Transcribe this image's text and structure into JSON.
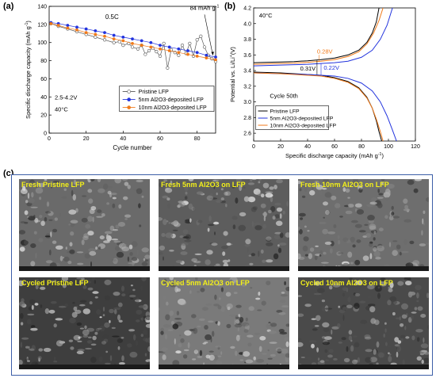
{
  "panels": {
    "a": "(a)",
    "b": "(b)",
    "c": "(c)"
  },
  "chart_data": [
    {
      "id": "a",
      "type": "scatter",
      "xlabel": "Cycle number",
      "ylabel": "Specific discharge capacity (mAh g",
      "ylabel_sup": "-1",
      "ylabel_tail": ")",
      "xlim": [
        0,
        90
      ],
      "ylim": [
        0,
        140
      ],
      "xticks": [
        0,
        20,
        40,
        60,
        80
      ],
      "yticks": [
        0,
        20,
        40,
        60,
        80,
        100,
        120,
        140
      ],
      "annotations": {
        "rate": "0.5C",
        "capacity": "84 mAh g",
        "capacity_sup": "-1",
        "voltage": "2.5-4.2V",
        "temperature": "40°C"
      },
      "series": [
        {
          "name": "Pristine LFP",
          "color": "#555555",
          "marker": "half-circle",
          "x": [
            1,
            5,
            10,
            15,
            20,
            25,
            30,
            35,
            38,
            40,
            43,
            45,
            48,
            50,
            52,
            54,
            56,
            58,
            60,
            62,
            64,
            66,
            68,
            70,
            72,
            74,
            76,
            78,
            80,
            82,
            84,
            86,
            88,
            90
          ],
          "y": [
            121,
            118,
            115,
            112,
            109,
            106,
            103,
            100,
            101,
            97,
            99,
            95,
            93,
            97,
            87,
            91,
            94,
            90,
            85,
            99,
            72,
            92,
            89,
            86,
            97,
            88,
            99,
            85,
            103,
            107,
            95,
            86,
            82,
            79
          ]
        },
        {
          "name": "5nm Al2O3-deposited LFP",
          "color": "#2233dd",
          "marker": "circle",
          "x": [
            1,
            5,
            10,
            15,
            20,
            25,
            30,
            35,
            40,
            45,
            50,
            55,
            60,
            65,
            70,
            75,
            80,
            85,
            90
          ],
          "y": [
            122,
            121,
            119,
            117,
            115,
            113,
            111,
            108,
            106,
            104,
            102,
            100,
            97,
            95,
            93,
            91,
            89,
            86,
            84
          ]
        },
        {
          "name": "10nm Al2O3-deposited LFP",
          "color": "#f07a1a",
          "marker": "circle",
          "x": [
            1,
            5,
            10,
            15,
            20,
            25,
            30,
            35,
            40,
            45,
            50,
            55,
            60,
            65,
            70,
            75,
            80,
            85,
            90
          ],
          "y": [
            121,
            119,
            116,
            114,
            111,
            109,
            107,
            104,
            102,
            99,
            97,
            95,
            93,
            91,
            89,
            87,
            85,
            83,
            81
          ]
        }
      ]
    },
    {
      "id": "b",
      "type": "line",
      "xlabel": "Specific discharge capacity (mAh g",
      "xlabel_sup": "-1",
      "xlabel_tail": ")",
      "ylabel": "Potential vs. Li/Li",
      "ylabel_sup": "+",
      "ylabel_tail": "(V)",
      "xlim": [
        0,
        120
      ],
      "ylim": [
        2.5,
        4.2
      ],
      "xticks": [
        0,
        20,
        40,
        60,
        80,
        100,
        120
      ],
      "yticks": [
        2.6,
        2.8,
        3.0,
        3.2,
        3.4,
        3.6,
        3.8,
        4.0,
        4.2
      ],
      "annotations": {
        "temperature": "40°C",
        "cycle": "Cycle 50th",
        "gap_pristine": "0.31V",
        "gap_5nm": "0.22V",
        "gap_10nm": "0.28V"
      },
      "series": [
        {
          "name": "Pristine LFP",
          "color": "#000000",
          "charge": {
            "x": [
              0,
              10,
              20,
              30,
              40,
              50,
              60,
              70,
              78,
              84,
              88,
              91,
              93
            ],
            "y": [
              3.5,
              3.505,
              3.51,
              3.515,
              3.525,
              3.54,
              3.56,
              3.6,
              3.66,
              3.76,
              3.88,
              4.02,
              4.2
            ]
          },
          "discharge": {
            "x": [
              0,
              10,
              20,
              30,
              40,
              50,
              60,
              70,
              78,
              84,
              88,
              91,
              93,
              95
            ],
            "y": [
              3.38,
              3.375,
              3.37,
              3.36,
              3.35,
              3.34,
              3.31,
              3.26,
              3.18,
              3.06,
              2.92,
              2.76,
              2.62,
              2.5
            ]
          }
        },
        {
          "name": "5nm Al2O3-deposited LFP",
          "color": "#2233dd",
          "charge": {
            "x": [
              0,
              10,
              20,
              30,
              40,
              50,
              60,
              70,
              80,
              88,
              94,
              99,
              103
            ],
            "y": [
              3.46,
              3.465,
              3.47,
              3.475,
              3.48,
              3.49,
              3.5,
              3.52,
              3.57,
              3.66,
              3.8,
              3.98,
              4.2
            ]
          },
          "discharge": {
            "x": [
              0,
              10,
              20,
              30,
              40,
              50,
              60,
              70,
              80,
              88,
              94,
              99,
              103,
              106
            ],
            "y": [
              3.37,
              3.365,
              3.36,
              3.355,
              3.35,
              3.34,
              3.33,
              3.3,
              3.24,
              3.14,
              3.0,
              2.82,
              2.64,
              2.5
            ]
          }
        },
        {
          "name": "10nm Al2O3-deposited LFP",
          "color": "#f07a1a",
          "charge": {
            "x": [
              0,
              10,
              20,
              30,
              40,
              50,
              60,
              70,
              78,
              84,
              89,
              93,
              96
            ],
            "y": [
              3.48,
              3.485,
              3.49,
              3.495,
              3.505,
              3.52,
              3.54,
              3.58,
              3.64,
              3.74,
              3.88,
              4.04,
              4.2
            ]
          },
          "discharge": {
            "x": [
              0,
              10,
              20,
              30,
              40,
              50,
              60,
              70,
              78,
              84,
              88,
              91,
              94,
              96
            ],
            "y": [
              3.37,
              3.365,
              3.36,
              3.35,
              3.34,
              3.33,
              3.3,
              3.25,
              3.17,
              3.05,
              2.92,
              2.78,
              2.62,
              2.5
            ]
          }
        }
      ]
    }
  ],
  "sem": [
    {
      "label": "Fresh Pristine LFP",
      "tone": "#6a6a6a"
    },
    {
      "label": "Fresh 5nm Al2O3 on LFP",
      "tone": "#5d5d5d"
    },
    {
      "label": "Fresh 10nm Al2O3 on LFP",
      "tone": "#6e6e6e"
    },
    {
      "label": "Cycled Pristine LFP",
      "tone": "#3e3e3e"
    },
    {
      "label": "Cycled 5nm Al2O3 on LFP",
      "tone": "#7a7a7a"
    },
    {
      "label": "Cycled 10nm Al2O3 on LFP",
      "tone": "#4a4a4a"
    }
  ]
}
